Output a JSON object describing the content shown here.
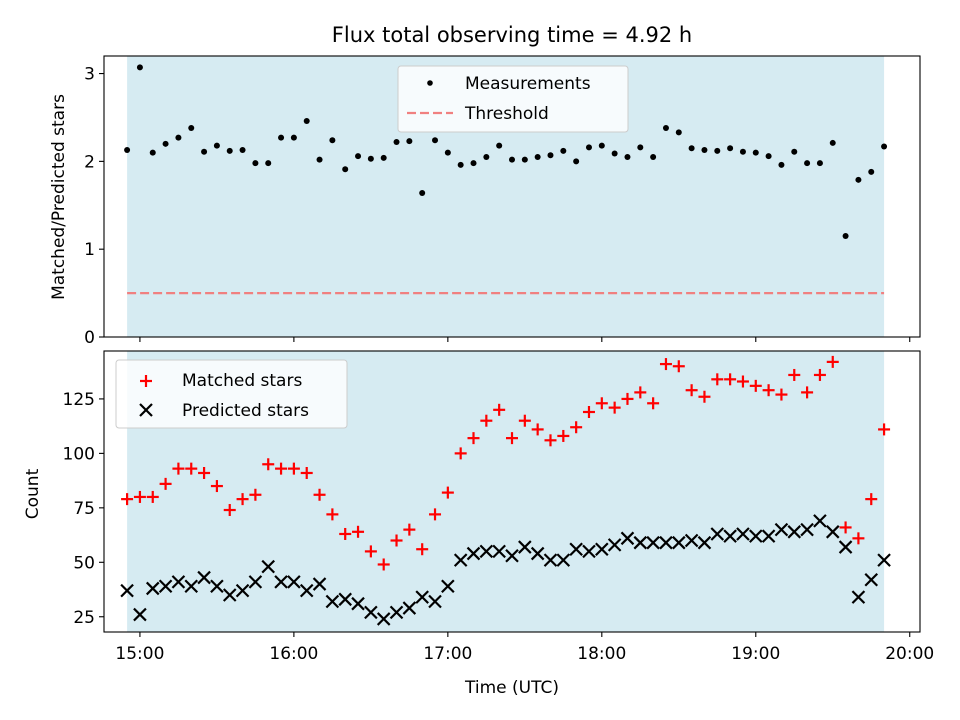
{
  "figure": {
    "title": "Flux total observing time = 4.92 h",
    "xlabel": "Time (UTC)"
  },
  "chart_data": [
    {
      "type": "scatter",
      "ylabel": "Matched/Predicted stars",
      "xlim": [
        "14:46",
        "20:04"
      ],
      "ylim": [
        0,
        3.2
      ],
      "yticks": [
        0,
        1,
        2,
        3
      ],
      "shaded_span": [
        "14:55",
        "19:50"
      ],
      "shade_color": "#add8e6",
      "legend_placement": "upper center",
      "series": [
        {
          "name": "Measurements",
          "marker": "dot",
          "color": "#000000",
          "x": [
            "14:55",
            "15:00",
            "15:05",
            "15:10",
            "15:15",
            "15:20",
            "15:25",
            "15:30",
            "15:35",
            "15:40",
            "15:45",
            "15:50",
            "15:55",
            "16:00",
            "16:05",
            "16:10",
            "16:15",
            "16:20",
            "16:25",
            "16:30",
            "16:35",
            "16:40",
            "16:45",
            "16:50",
            "16:55",
            "17:00",
            "17:05",
            "17:10",
            "17:15",
            "17:20",
            "17:25",
            "17:30",
            "17:35",
            "17:40",
            "17:45",
            "17:50",
            "17:55",
            "18:00",
            "18:05",
            "18:10",
            "18:15",
            "18:20",
            "18:25",
            "18:30",
            "18:35",
            "18:40",
            "18:45",
            "18:50",
            "18:55",
            "19:00",
            "19:05",
            "19:10",
            "19:15",
            "19:20",
            "19:25",
            "19:30",
            "19:35",
            "19:40",
            "19:45",
            "19:50"
          ],
          "y": [
            2.13,
            3.07,
            2.1,
            2.2,
            2.27,
            2.38,
            2.11,
            2.18,
            2.12,
            2.13,
            1.98,
            1.98,
            2.27,
            2.27,
            2.46,
            2.02,
            2.24,
            1.91,
            2.06,
            2.03,
            2.04,
            2.22,
            2.23,
            1.64,
            2.24,
            2.1,
            1.96,
            1.98,
            2.05,
            2.18,
            2.02,
            2.02,
            2.05,
            2.07,
            2.12,
            2.0,
            2.16,
            2.18,
            2.09,
            2.05,
            2.16,
            2.05,
            2.38,
            2.33,
            2.15,
            2.13,
            2.12,
            2.15,
            2.11,
            2.1,
            2.06,
            1.96,
            2.11,
            1.98,
            1.98,
            2.21,
            1.15,
            1.79,
            1.88,
            2.17
          ]
        },
        {
          "name": "Threshold",
          "line_style": "dashed",
          "color": "#f08080",
          "x": [
            "14:55",
            "19:50"
          ],
          "y": [
            0.5,
            0.5
          ]
        }
      ]
    },
    {
      "type": "scatter",
      "ylabel": "Count",
      "xlabel": "Time (UTC)",
      "xlim": [
        "14:46",
        "20:04"
      ],
      "ylim": [
        18,
        147
      ],
      "yticks": [
        25,
        50,
        75,
        100,
        125
      ],
      "xticks": [
        "15:00",
        "16:00",
        "17:00",
        "18:00",
        "19:00",
        "20:00"
      ],
      "shaded_span": [
        "14:55",
        "19:50"
      ],
      "shade_color": "#add8e6",
      "legend_placement": "upper left",
      "series": [
        {
          "name": "Matched stars",
          "marker": "plus",
          "color": "#ff0000",
          "x": [
            "14:55",
            "15:00",
            "15:05",
            "15:10",
            "15:15",
            "15:20",
            "15:25",
            "15:30",
            "15:35",
            "15:40",
            "15:45",
            "15:50",
            "15:55",
            "16:00",
            "16:05",
            "16:10",
            "16:15",
            "16:20",
            "16:25",
            "16:30",
            "16:35",
            "16:40",
            "16:45",
            "16:50",
            "16:55",
            "17:00",
            "17:05",
            "17:10",
            "17:15",
            "17:20",
            "17:25",
            "17:30",
            "17:35",
            "17:40",
            "17:45",
            "17:50",
            "17:55",
            "18:00",
            "18:05",
            "18:10",
            "18:15",
            "18:20",
            "18:25",
            "18:30",
            "18:35",
            "18:40",
            "18:45",
            "18:50",
            "18:55",
            "19:00",
            "19:05",
            "19:10",
            "19:15",
            "19:20",
            "19:25",
            "19:30",
            "19:35",
            "19:40",
            "19:45",
            "19:50"
          ],
          "y": [
            79,
            80,
            80,
            86,
            93,
            93,
            91,
            85,
            74,
            79,
            81,
            95,
            93,
            93,
            91,
            81,
            72,
            63,
            64,
            55,
            49,
            60,
            65,
            56,
            72,
            82,
            100,
            107,
            115,
            120,
            107,
            115,
            111,
            106,
            108,
            112,
            119,
            123,
            121,
            125,
            128,
            123,
            141,
            140,
            129,
            126,
            134,
            134,
            133,
            131,
            129,
            127,
            136,
            128,
            136,
            142,
            66,
            61,
            79,
            111
          ]
        },
        {
          "name": "Predicted stars",
          "marker": "x",
          "color": "#000000",
          "x": [
            "14:55",
            "15:00",
            "15:05",
            "15:10",
            "15:15",
            "15:20",
            "15:25",
            "15:30",
            "15:35",
            "15:40",
            "15:45",
            "15:50",
            "15:55",
            "16:00",
            "16:05",
            "16:10",
            "16:15",
            "16:20",
            "16:25",
            "16:30",
            "16:35",
            "16:40",
            "16:45",
            "16:50",
            "16:55",
            "17:00",
            "17:05",
            "17:10",
            "17:15",
            "17:20",
            "17:25",
            "17:30",
            "17:35",
            "17:40",
            "17:45",
            "17:50",
            "17:55",
            "18:00",
            "18:05",
            "18:10",
            "18:15",
            "18:20",
            "18:25",
            "18:30",
            "18:35",
            "18:40",
            "18:45",
            "18:50",
            "18:55",
            "19:00",
            "19:05",
            "19:10",
            "19:15",
            "19:20",
            "19:25",
            "19:30",
            "19:35",
            "19:40",
            "19:45",
            "19:50"
          ],
          "y": [
            37,
            26,
            38,
            39,
            41,
            39,
            43,
            39,
            35,
            37,
            41,
            48,
            41,
            41,
            37,
            40,
            32,
            33,
            31,
            27,
            24,
            27,
            29,
            34,
            32,
            39,
            51,
            54,
            55,
            55,
            53,
            57,
            54,
            51,
            51,
            56,
            55,
            56,
            58,
            61,
            59,
            59,
            59,
            59,
            60,
            59,
            63,
            62,
            63,
            62,
            62,
            65,
            64,
            65,
            69,
            64,
            57,
            34,
            42,
            51
          ]
        }
      ]
    }
  ]
}
